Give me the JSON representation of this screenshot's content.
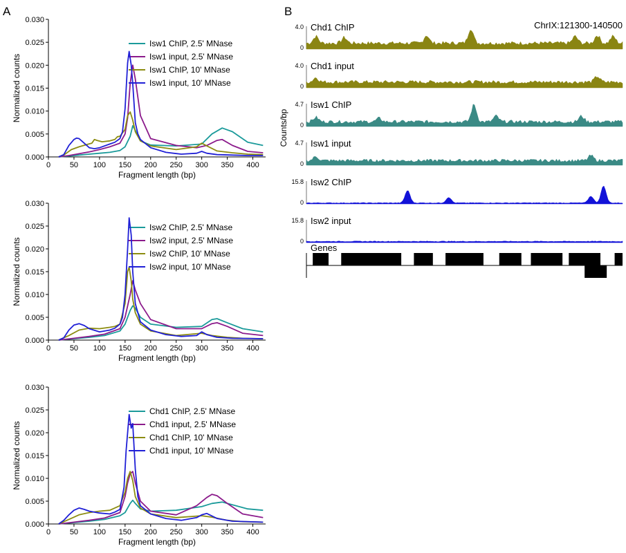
{
  "panel_labels": {
    "a": "A",
    "b": "B"
  },
  "colors": {
    "teal": "#1a9a9a",
    "purple": "#8b1a8b",
    "olive": "#8c8c10",
    "blue": "#1f1fd6",
    "track_olive": "#8a8512",
    "track_teal": "#3a8a85",
    "track_blue": "#1212d8"
  },
  "chart_data": [
    {
      "type": "line",
      "xlabel": "Fragment length (bp)",
      "ylabel": "Normalized counts",
      "xlim": [
        0,
        425
      ],
      "ylim": [
        0,
        0.03
      ],
      "xticks": [
        "0",
        "50",
        "100",
        "150",
        "200",
        "250",
        "300",
        "350",
        "400"
      ],
      "yticks": [
        "0.000",
        "0.005",
        "0.010",
        "0.015",
        "0.020",
        "0.025",
        "0.030"
      ],
      "legend_position": "top-right",
      "series": [
        {
          "name": "Isw1 ChIP, 2.5' MNase",
          "color": "#1a9a9a",
          "x": [
            20,
            40,
            60,
            80,
            100,
            120,
            140,
            150,
            160,
            165,
            170,
            180,
            200,
            250,
            300,
            320,
            340,
            360,
            390,
            420
          ],
          "y": [
            0,
            0.0002,
            0.0004,
            0.0006,
            0.0008,
            0.001,
            0.0014,
            0.0022,
            0.0045,
            0.0068,
            0.0058,
            0.0035,
            0.0026,
            0.0024,
            0.0028,
            0.005,
            0.0063,
            0.0055,
            0.0032,
            0.0025
          ]
        },
        {
          "name": "Isw1 input, 2.5' MNase",
          "color": "#8b1a8b",
          "x": [
            20,
            40,
            60,
            80,
            100,
            120,
            140,
            150,
            155,
            160,
            165,
            170,
            180,
            200,
            250,
            290,
            310,
            330,
            340,
            360,
            390,
            420
          ],
          "y": [
            0,
            0.0003,
            0.0007,
            0.0011,
            0.0016,
            0.0022,
            0.003,
            0.005,
            0.0085,
            0.016,
            0.02,
            0.017,
            0.009,
            0.004,
            0.0025,
            0.002,
            0.0025,
            0.0036,
            0.0038,
            0.0025,
            0.0012,
            0.0009
          ]
        },
        {
          "name": "Isw1 ChIP, 10' MNase",
          "color": "#8c8c10",
          "x": [
            20,
            30,
            45,
            60,
            75,
            85,
            90,
            95,
            105,
            120,
            130,
            135,
            140,
            150,
            155,
            160,
            165,
            170,
            180,
            200,
            250,
            290,
            300,
            310,
            330,
            360,
            390,
            420
          ],
          "y": [
            0,
            0.0004,
            0.0016,
            0.0022,
            0.0027,
            0.003,
            0.0038,
            0.0036,
            0.0033,
            0.0035,
            0.0038,
            0.0044,
            0.0045,
            0.006,
            0.009,
            0.0098,
            0.008,
            0.0055,
            0.0035,
            0.0024,
            0.0016,
            0.0022,
            0.003,
            0.0024,
            0.0013,
            0.0009,
            0.0006,
            0.0005
          ]
        },
        {
          "name": "Isw1 input, 10' MNase",
          "color": "#1f1fd6",
          "x": [
            20,
            30,
            40,
            50,
            55,
            60,
            70,
            80,
            90,
            100,
            120,
            130,
            140,
            145,
            150,
            155,
            158,
            162,
            165,
            170,
            175,
            180,
            200,
            230,
            260,
            290,
            300,
            310,
            330,
            360,
            390,
            420
          ],
          "y": [
            0,
            0.0005,
            0.0025,
            0.0038,
            0.0041,
            0.004,
            0.003,
            0.002,
            0.0018,
            0.002,
            0.0028,
            0.0032,
            0.004,
            0.0055,
            0.0105,
            0.0205,
            0.023,
            0.02,
            0.016,
            0.0075,
            0.005,
            0.0038,
            0.002,
            0.001,
            0.0006,
            0.0008,
            0.0012,
            0.0008,
            0.0005,
            0.0004,
            0.0003,
            0.0003
          ]
        }
      ]
    },
    {
      "type": "line",
      "xlabel": "Fragment length (bp)",
      "ylabel": "Normalized counts",
      "xlim": [
        0,
        425
      ],
      "ylim": [
        0,
        0.03
      ],
      "xticks": [
        "0",
        "50",
        "100",
        "150",
        "200",
        "250",
        "300",
        "350",
        "400"
      ],
      "yticks": [
        "0.000",
        "0.005",
        "0.010",
        "0.015",
        "0.020",
        "0.025",
        "0.030"
      ],
      "legend_position": "top-right",
      "series": [
        {
          "name": "Isw2 ChIP, 2.5' MNase",
          "color": "#1a9a9a",
          "x": [
            20,
            50,
            80,
            110,
            140,
            150,
            160,
            165,
            170,
            180,
            200,
            250,
            300,
            320,
            330,
            350,
            380,
            420
          ],
          "y": [
            0,
            0.0003,
            0.0006,
            0.001,
            0.002,
            0.0035,
            0.0065,
            0.0075,
            0.007,
            0.005,
            0.0035,
            0.0028,
            0.003,
            0.0045,
            0.0047,
            0.0038,
            0.0025,
            0.0018
          ]
        },
        {
          "name": "Isw2 input, 2.5' MNase",
          "color": "#8b1a8b",
          "x": [
            20,
            50,
            80,
            110,
            140,
            150,
            160,
            165,
            170,
            180,
            200,
            250,
            300,
            320,
            330,
            350,
            380,
            420
          ],
          "y": [
            0,
            0.0004,
            0.0008,
            0.0013,
            0.0025,
            0.005,
            0.01,
            0.013,
            0.011,
            0.008,
            0.0045,
            0.0025,
            0.0025,
            0.0036,
            0.0038,
            0.003,
            0.0015,
            0.001
          ]
        },
        {
          "name": "Isw2 ChIP, 10' MNase",
          "color": "#8c8c10",
          "x": [
            20,
            40,
            60,
            80,
            100,
            120,
            130,
            140,
            150,
            155,
            158,
            162,
            165,
            170,
            180,
            200,
            250,
            300,
            320,
            350,
            380,
            420
          ],
          "y": [
            0,
            0.001,
            0.0022,
            0.0026,
            0.0025,
            0.0028,
            0.003,
            0.0035,
            0.008,
            0.015,
            0.016,
            0.013,
            0.009,
            0.006,
            0.0035,
            0.002,
            0.001,
            0.0015,
            0.001,
            0.0006,
            0.0004,
            0.0003
          ]
        },
        {
          "name": "Isw2 input, 10' MNase",
          "color": "#1f1fd6",
          "x": [
            20,
            30,
            40,
            50,
            60,
            70,
            80,
            100,
            120,
            130,
            140,
            145,
            150,
            155,
            158,
            162,
            165,
            170,
            180,
            200,
            230,
            260,
            290,
            300,
            310,
            330,
            360,
            420
          ],
          "y": [
            0,
            0.0005,
            0.0022,
            0.0033,
            0.0036,
            0.0032,
            0.0025,
            0.0018,
            0.0022,
            0.0026,
            0.0035,
            0.005,
            0.01,
            0.02,
            0.0268,
            0.023,
            0.015,
            0.008,
            0.004,
            0.0022,
            0.0012,
            0.0008,
            0.001,
            0.0018,
            0.0012,
            0.0006,
            0.0004,
            0.0003
          ]
        }
      ]
    },
    {
      "type": "line",
      "xlabel": "Fragment length (bp)",
      "ylabel": "Normalized counts",
      "xlim": [
        0,
        425
      ],
      "ylim": [
        0,
        0.03
      ],
      "xticks": [
        "0",
        "50",
        "100",
        "150",
        "200",
        "250",
        "300",
        "350",
        "400"
      ],
      "yticks": [
        "0.000",
        "0.005",
        "0.010",
        "0.015",
        "0.020",
        "0.025",
        "0.030"
      ],
      "legend_position": "top-right",
      "series": [
        {
          "name": "Chd1 ChIP, 2.5' MNase",
          "color": "#1a9a9a",
          "x": [
            20,
            50,
            80,
            110,
            140,
            150,
            160,
            165,
            170,
            180,
            200,
            250,
            300,
            320,
            340,
            360,
            390,
            420
          ],
          "y": [
            0,
            0.0003,
            0.0006,
            0.001,
            0.0018,
            0.0025,
            0.0045,
            0.0052,
            0.0045,
            0.0033,
            0.0028,
            0.003,
            0.0038,
            0.0045,
            0.0048,
            0.0042,
            0.0033,
            0.003
          ]
        },
        {
          "name": "Chd1 input, 2.5' MNase",
          "color": "#8b1a8b",
          "x": [
            20,
            50,
            80,
            110,
            140,
            150,
            155,
            160,
            165,
            170,
            180,
            200,
            250,
            290,
            310,
            320,
            330,
            350,
            380,
            420
          ],
          "y": [
            0,
            0.0004,
            0.0008,
            0.0013,
            0.0025,
            0.006,
            0.009,
            0.011,
            0.0115,
            0.009,
            0.005,
            0.0028,
            0.002,
            0.004,
            0.0058,
            0.0065,
            0.0062,
            0.0045,
            0.0022,
            0.0014
          ]
        },
        {
          "name": "Chd1 ChIP, 10' MNase",
          "color": "#8c8c10",
          "x": [
            20,
            40,
            60,
            80,
            100,
            120,
            140,
            150,
            155,
            160,
            165,
            170,
            180,
            200,
            250,
            300,
            320,
            350,
            380,
            420
          ],
          "y": [
            0,
            0.001,
            0.002,
            0.0025,
            0.0028,
            0.003,
            0.004,
            0.007,
            0.01,
            0.0115,
            0.0095,
            0.006,
            0.0035,
            0.0022,
            0.0014,
            0.0018,
            0.0015,
            0.0008,
            0.0005,
            0.0004
          ]
        },
        {
          "name": "Chd1 input, 10' MNase",
          "color": "#1f1fd6",
          "x": [
            20,
            30,
            40,
            50,
            60,
            70,
            80,
            100,
            120,
            130,
            140,
            148,
            152,
            158,
            162,
            165,
            170,
            175,
            180,
            200,
            230,
            260,
            290,
            300,
            310,
            330,
            360,
            420
          ],
          "y": [
            0,
            0.0008,
            0.002,
            0.003,
            0.0035,
            0.0032,
            0.0028,
            0.0024,
            0.0022,
            0.0026,
            0.0032,
            0.008,
            0.016,
            0.024,
            0.021,
            0.022,
            0.012,
            0.006,
            0.004,
            0.0022,
            0.0012,
            0.0008,
            0.0014,
            0.002,
            0.0023,
            0.0012,
            0.0006,
            0.0004
          ]
        }
      ]
    }
  ],
  "tracks": {
    "region": "ChrIX:121300-140500",
    "ylabel": "Counts/bp",
    "items": [
      {
        "name": "Chd1 ChIP",
        "max": "4.0",
        "min": "0",
        "color": "#8a8512",
        "base": 0.18,
        "noise": 0.16,
        "peaks": [
          [
            0.03,
            0.3
          ],
          [
            0.12,
            0.25
          ],
          [
            0.38,
            0.35
          ],
          [
            0.52,
            0.65
          ],
          [
            0.85,
            0.3
          ],
          [
            0.92,
            0.35
          ],
          [
            0.97,
            0.3
          ]
        ]
      },
      {
        "name": "Chd1 input",
        "max": "4.0",
        "min": "0",
        "color": "#8a8512",
        "base": 0.18,
        "noise": 0.15,
        "peaks": [
          [
            0.03,
            0.2
          ],
          [
            0.92,
            0.25
          ]
        ]
      },
      {
        "name": "Isw1 ChIP",
        "max": "4.7",
        "min": "0",
        "color": "#3a8a85",
        "base": 0.14,
        "noise": 0.14,
        "peaks": [
          [
            0.03,
            0.2
          ],
          [
            0.23,
            0.15
          ],
          [
            0.53,
            0.75
          ],
          [
            0.6,
            0.25
          ],
          [
            0.87,
            0.25
          ]
        ]
      },
      {
        "name": "Isw1 input",
        "max": "4.7",
        "min": "0",
        "color": "#3a8a85",
        "base": 0.14,
        "noise": 0.13,
        "peaks": [
          [
            0.03,
            0.18
          ],
          [
            0.9,
            0.22
          ]
        ]
      },
      {
        "name": "Isw2 ChIP",
        "max": "15.8",
        "min": "0",
        "color": "#1212d8",
        "base": 0.03,
        "noise": 0.03,
        "peaks": [
          [
            0.32,
            0.55
          ],
          [
            0.45,
            0.25
          ],
          [
            0.9,
            0.3
          ],
          [
            0.94,
            0.75
          ]
        ]
      },
      {
        "name": "Isw2 input",
        "max": "15.8",
        "min": "0",
        "color": "#1212d8",
        "base": 0.04,
        "noise": 0.03,
        "peaks": []
      }
    ],
    "genes_label": "Genes",
    "genes": [
      {
        "start": 0.02,
        "end": 0.07,
        "strand": "+"
      },
      {
        "start": 0.11,
        "end": 0.3,
        "strand": "+"
      },
      {
        "start": 0.34,
        "end": 0.4,
        "strand": "+"
      },
      {
        "start": 0.44,
        "end": 0.56,
        "strand": "+"
      },
      {
        "start": 0.61,
        "end": 0.68,
        "strand": "+"
      },
      {
        "start": 0.71,
        "end": 0.81,
        "strand": "+"
      },
      {
        "start": 0.83,
        "end": 0.93,
        "strand": "+"
      },
      {
        "start": 0.88,
        "end": 0.95,
        "strand": "-"
      },
      {
        "start": 0.975,
        "end": 1.0,
        "strand": "+"
      }
    ]
  }
}
